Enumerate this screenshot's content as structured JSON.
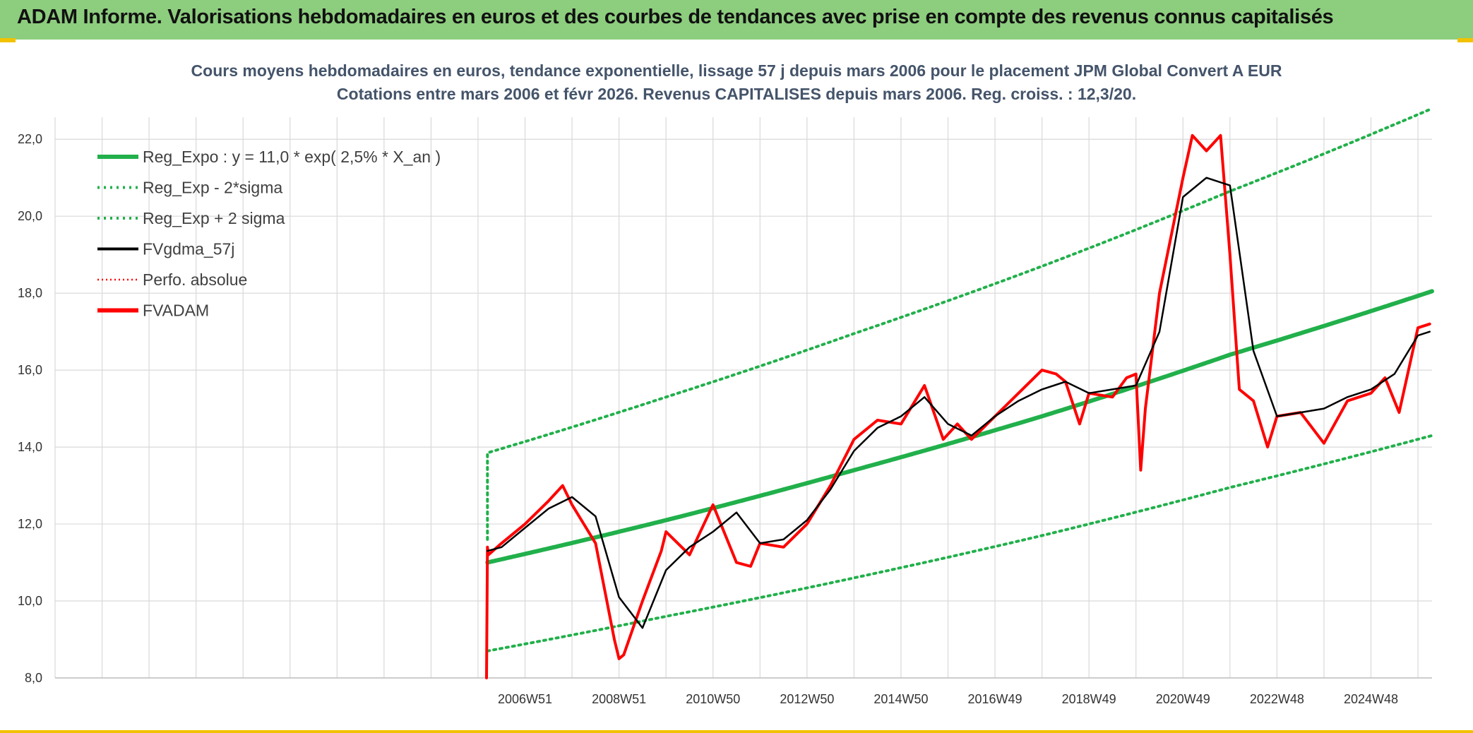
{
  "header": {
    "title": "ADAM Informe. Valorisations hebdomadaires en euros et des courbes de tendances avec prise en compte des revenus connus capitalisés"
  },
  "colors": {
    "header_bg": "#8dcd7e",
    "regression": "#21b04b",
    "price": "#ff0000",
    "smoothed": "#000000",
    "accent": "#f2c200"
  },
  "chart_data": {
    "type": "line",
    "title": "Cours moyens hebdomadaires en euros, tendance exponentielle, lissage 57 j depuis mars 2006 pour le placement JPM Global Convert A EUR",
    "subtitle": "Cotations entre mars 2006 et févr 2026. Revenus CAPITALISES depuis mars 2006. Reg. croiss. : 12,3/20.",
    "ylim": [
      8,
      22.5
    ],
    "xlim": [
      1997.0,
      2026.3
    ],
    "grid": true,
    "legend_position": "top-left",
    "y_ticks": [
      "8,0",
      "10,0",
      "12,0",
      "14,0",
      "16,0",
      "18,0",
      "20,0",
      "22,0"
    ],
    "y_tick_values": [
      8,
      10,
      12,
      14,
      16,
      18,
      20,
      22
    ],
    "x_ticks": [
      "2006W51",
      "2008W51",
      "2010W50",
      "2012W50",
      "2014W50",
      "2016W49",
      "2018W49",
      "2020W49",
      "2022W48",
      "2024W48"
    ],
    "x_tick_values": [
      2007.0,
      2009.0,
      2011.0,
      2013.0,
      2015.0,
      2017.0,
      2019.0,
      2021.0,
      2023.0,
      2025.0
    ],
    "legend": [
      {
        "label": "Reg_Expo : y = 11,0 * exp( 2,5% *  X_an )",
        "style": "solid-thick",
        "color": "#21b04b"
      },
      {
        "label": "Reg_Exp - 2*sigma",
        "style": "dotted",
        "color": "#21b04b"
      },
      {
        "label": "Reg_Exp + 2 sigma",
        "style": "dotted",
        "color": "#21b04b"
      },
      {
        "label": "FVgdma_57j",
        "style": "solid",
        "color": "#000000"
      },
      {
        "label": "Perfo. absolue",
        "style": "dotted",
        "color": "#ff0000"
      },
      {
        "label": "FVADAM",
        "style": "solid-thick",
        "color": "#ff0000"
      }
    ],
    "series": [
      {
        "name": "Reg_Expo : y = 11,0 * exp( 2,5% *  X_an )",
        "x": [
          2006.2,
          2010,
          2014,
          2018,
          2022,
          2026.3
        ],
        "y": [
          11.0,
          12.1,
          13.4,
          14.8,
          16.4,
          18.05
        ]
      },
      {
        "name": "Reg_Exp - 2*sigma",
        "x": [
          2006.2,
          2010,
          2014,
          2018,
          2022,
          2026.3
        ],
        "y": [
          8.7,
          9.6,
          10.6,
          11.7,
          12.95,
          14.3
        ]
      },
      {
        "name": "Reg_Exp + 2 sigma",
        "x": [
          2006.2,
          2006.2,
          2010,
          2014,
          2018,
          2022,
          2026.3
        ],
        "y": [
          11.6,
          13.85,
          15.3,
          16.95,
          18.7,
          20.65,
          22.8
        ]
      },
      {
        "name": "FVgdma_57j",
        "x": [
          2006.2,
          2006.5,
          2007.0,
          2007.5,
          2008.0,
          2008.5,
          2009.0,
          2009.5,
          2010.0,
          2010.5,
          2011.0,
          2011.5,
          2012.0,
          2012.5,
          2013.0,
          2013.5,
          2014.0,
          2014.5,
          2015.0,
          2015.5,
          2016.0,
          2016.5,
          2017.0,
          2017.5,
          2018.0,
          2018.5,
          2019.0,
          2019.5,
          2020.0,
          2020.5,
          2021.0,
          2021.5,
          2022.0,
          2022.5,
          2023.0,
          2023.5,
          2024.0,
          2024.5,
          2025.0,
          2025.5,
          2026.0,
          2026.25
        ],
        "y": [
          11.3,
          11.4,
          11.9,
          12.4,
          12.7,
          12.2,
          10.1,
          9.3,
          10.8,
          11.4,
          11.8,
          12.3,
          11.5,
          11.6,
          12.1,
          12.9,
          13.9,
          14.5,
          14.8,
          15.3,
          14.6,
          14.3,
          14.8,
          15.2,
          15.5,
          15.7,
          15.4,
          15.5,
          15.6,
          17.0,
          20.5,
          21.0,
          20.8,
          16.5,
          14.8,
          14.9,
          15.0,
          15.3,
          15.5,
          15.9,
          16.9,
          17.0
        ]
      },
      {
        "name": "FVADAM",
        "x": [
          2006.18,
          2006.2,
          2006.22,
          2006.5,
          2007.0,
          2007.5,
          2007.8,
          2008.0,
          2008.5,
          2008.9,
          2009.0,
          2009.1,
          2009.5,
          2009.9,
          2010.0,
          2010.5,
          2011.0,
          2011.5,
          2011.8,
          2012.0,
          2012.5,
          2013.0,
          2013.5,
          2014.0,
          2014.5,
          2015.0,
          2015.5,
          2015.9,
          2016.2,
          2016.5,
          2017.0,
          2017.5,
          2018.0,
          2018.3,
          2018.5,
          2018.8,
          2019.0,
          2019.5,
          2019.8,
          2020.0,
          2020.1,
          2020.2,
          2020.5,
          2021.0,
          2021.2,
          2021.5,
          2021.8,
          2022.0,
          2022.2,
          2022.5,
          2022.8,
          2023.0,
          2023.5,
          2024.0,
          2024.5,
          2025.0,
          2025.3,
          2025.6,
          2026.0,
          2026.25
        ],
        "y": [
          8.0,
          11.4,
          11.2,
          11.5,
          12.0,
          12.6,
          13.0,
          12.5,
          11.5,
          9.0,
          8.5,
          8.6,
          10.0,
          11.3,
          11.8,
          11.2,
          12.5,
          11.0,
          10.9,
          11.5,
          11.4,
          12.0,
          13.0,
          14.2,
          14.7,
          14.6,
          15.6,
          14.2,
          14.6,
          14.2,
          14.8,
          15.4,
          16.0,
          15.9,
          15.7,
          14.6,
          15.4,
          15.3,
          15.8,
          15.9,
          13.4,
          15.0,
          18.0,
          21.0,
          22.1,
          21.7,
          22.1,
          19.0,
          15.5,
          15.2,
          14.0,
          14.8,
          14.9,
          14.1,
          15.2,
          15.4,
          15.8,
          14.9,
          17.1,
          17.2
        ]
      }
    ]
  }
}
